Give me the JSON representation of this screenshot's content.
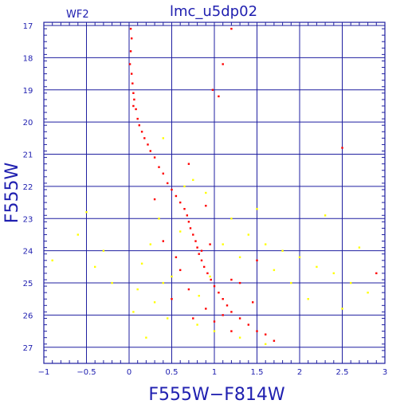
{
  "chart_data": {
    "type": "scatter",
    "title": "lmc_u5dp02",
    "subtitle": "WF2",
    "xlabel": "F555W−F814W",
    "ylabel": "F555W",
    "xlim": [
      -1,
      3
    ],
    "ylim": [
      27.5,
      16.9
    ],
    "y_inverted": true,
    "grid": true,
    "x_ticks": [
      -1,
      -0.5,
      0,
      0.5,
      1,
      1.5,
      2,
      2.5,
      3
    ],
    "x_tick_labels": [
      "−1",
      "−0.5",
      "0",
      "0.5",
      "1",
      "1.5",
      "2",
      "2.5",
      "3"
    ],
    "y_ticks": [
      17,
      18,
      19,
      20,
      21,
      22,
      23,
      24,
      25,
      26,
      27
    ],
    "y_tick_labels": [
      "17",
      "18",
      "19",
      "20",
      "21",
      "22",
      "23",
      "24",
      "25",
      "26",
      "27"
    ],
    "colors": {
      "axis": "#1f1fa0",
      "grid": "#1f1fa0",
      "text": "#2020b0",
      "series_main": "#ff0000",
      "series_secondary": "#ffff00"
    },
    "series": [
      {
        "color": "#ff0000",
        "points": [
          [
            0.02,
            17.1
          ],
          [
            0.03,
            17.4
          ],
          [
            0.02,
            17.8
          ],
          [
            0.01,
            18.2
          ],
          [
            0.03,
            18.5
          ],
          [
            0.04,
            18.8
          ],
          [
            0.05,
            19.1
          ],
          [
            0.06,
            19.3
          ],
          [
            0.08,
            19.6
          ],
          [
            0.1,
            19.9
          ],
          [
            0.05,
            19.5
          ],
          [
            0.12,
            20.1
          ],
          [
            0.15,
            20.3
          ],
          [
            0.18,
            20.5
          ],
          [
            0.22,
            20.7
          ],
          [
            0.25,
            20.9
          ],
          [
            0.3,
            21.1
          ],
          [
            0.35,
            21.4
          ],
          [
            0.4,
            21.6
          ],
          [
            0.45,
            21.9
          ],
          [
            0.5,
            22.1
          ],
          [
            0.55,
            22.3
          ],
          [
            0.6,
            22.5
          ],
          [
            0.65,
            22.7
          ],
          [
            0.68,
            22.9
          ],
          [
            0.7,
            23.1
          ],
          [
            0.72,
            23.3
          ],
          [
            0.75,
            23.5
          ],
          [
            0.78,
            23.7
          ],
          [
            0.8,
            23.9
          ],
          [
            0.82,
            24.1
          ],
          [
            0.85,
            24.3
          ],
          [
            0.88,
            24.5
          ],
          [
            0.92,
            24.7
          ],
          [
            0.96,
            24.9
          ],
          [
            1.0,
            25.1
          ],
          [
            1.05,
            25.3
          ],
          [
            1.1,
            25.5
          ],
          [
            1.15,
            25.7
          ],
          [
            1.2,
            25.9
          ],
          [
            1.3,
            26.1
          ],
          [
            1.4,
            26.3
          ],
          [
            1.5,
            26.5
          ],
          [
            1.6,
            26.6
          ],
          [
            1.7,
            26.8
          ],
          [
            0.6,
            24.6
          ],
          [
            0.7,
            25.2
          ],
          [
            0.9,
            25.8
          ],
          [
            1.0,
            26.2
          ],
          [
            1.2,
            26.5
          ],
          [
            0.5,
            25.5
          ],
          [
            0.75,
            26.1
          ],
          [
            0.85,
            24.0
          ],
          [
            0.95,
            23.8
          ],
          [
            1.2,
            24.9
          ],
          [
            2.5,
            20.8
          ],
          [
            0.98,
            19.0
          ],
          [
            1.05,
            19.2
          ],
          [
            1.2,
            17.1
          ],
          [
            1.1,
            18.2
          ],
          [
            0.7,
            21.3
          ],
          [
            0.9,
            22.6
          ],
          [
            1.3,
            25.0
          ],
          [
            1.45,
            25.6
          ],
          [
            1.1,
            26.0
          ],
          [
            0.3,
            22.4
          ],
          [
            0.4,
            23.7
          ],
          [
            0.55,
            24.2
          ],
          [
            1.5,
            24.3
          ],
          [
            2.9,
            24.7
          ]
        ]
      },
      {
        "color": "#ffff00",
        "points": [
          [
            0.4,
            20.5
          ],
          [
            -0.5,
            22.8
          ],
          [
            -0.6,
            23.5
          ],
          [
            -0.3,
            24.0
          ],
          [
            -0.9,
            24.3
          ],
          [
            -0.4,
            24.5
          ],
          [
            -0.2,
            25.0
          ],
          [
            0.1,
            25.2
          ],
          [
            0.3,
            25.6
          ],
          [
            0.45,
            26.1
          ],
          [
            0.2,
            26.7
          ],
          [
            0.9,
            22.2
          ],
          [
            1.2,
            23.0
          ],
          [
            1.4,
            23.5
          ],
          [
            1.6,
            23.8
          ],
          [
            1.8,
            24.0
          ],
          [
            2.0,
            24.2
          ],
          [
            2.2,
            24.5
          ],
          [
            2.4,
            24.7
          ],
          [
            2.6,
            25.0
          ],
          [
            2.8,
            25.3
          ],
          [
            2.5,
            25.8
          ],
          [
            2.1,
            25.5
          ],
          [
            1.9,
            25.0
          ],
          [
            1.7,
            24.6
          ],
          [
            1.3,
            24.2
          ],
          [
            1.1,
            23.8
          ],
          [
            0.6,
            23.4
          ],
          [
            0.5,
            24.8
          ],
          [
            0.4,
            25.0
          ],
          [
            0.8,
            26.3
          ],
          [
            1.0,
            26.5
          ],
          [
            1.3,
            26.7
          ],
          [
            1.6,
            26.9
          ],
          [
            0.35,
            23.0
          ],
          [
            0.25,
            23.8
          ],
          [
            0.15,
            24.4
          ],
          [
            0.05,
            25.9
          ],
          [
            0.65,
            22.0
          ],
          [
            0.75,
            21.8
          ],
          [
            2.3,
            22.9
          ],
          [
            2.7,
            23.9
          ],
          [
            1.5,
            22.7
          ],
          [
            0.95,
            24.8
          ],
          [
            0.82,
            25.4
          ]
        ]
      }
    ]
  }
}
